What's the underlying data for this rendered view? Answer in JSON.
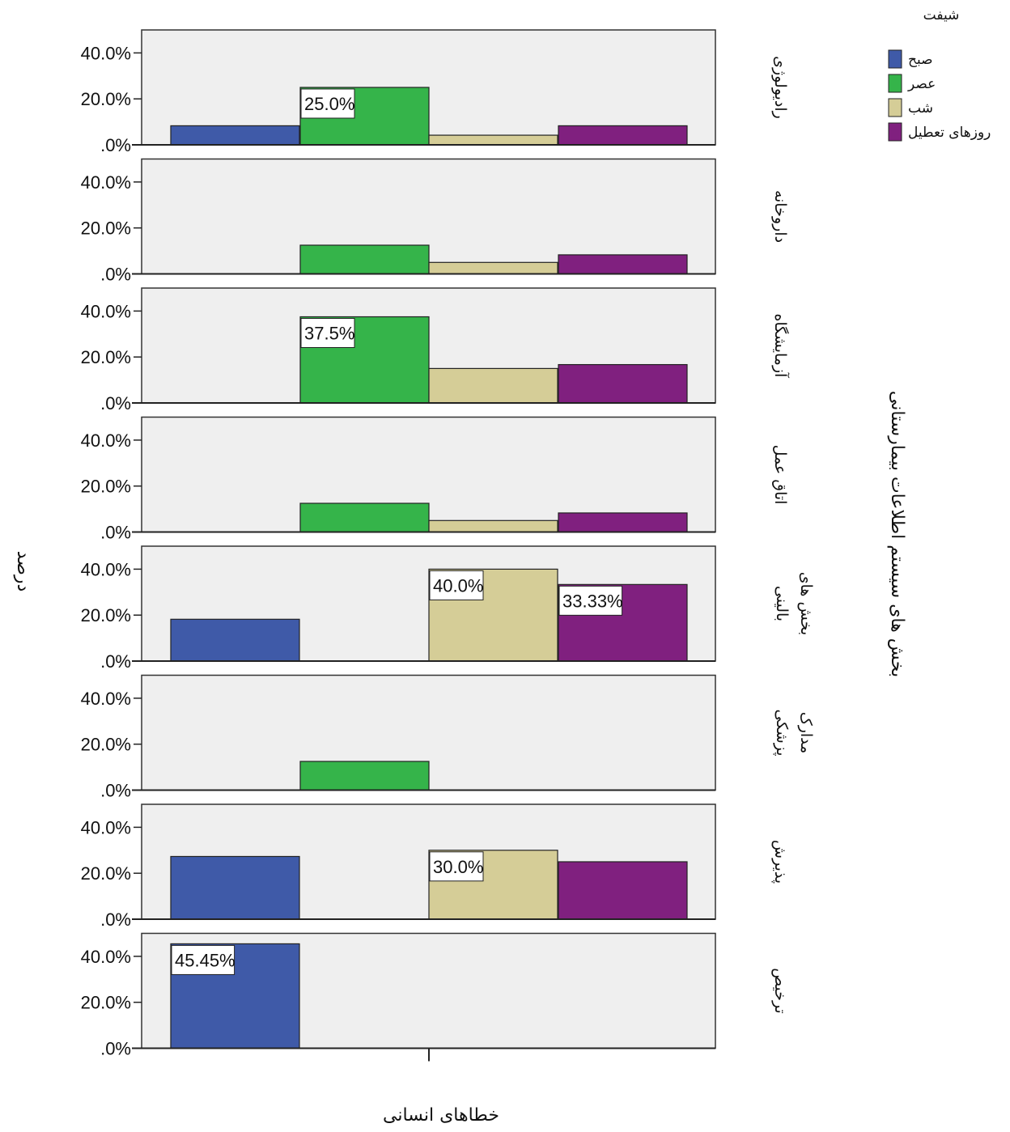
{
  "chart_data": {
    "type": "bar",
    "xlabel": "خطاهای انسانی",
    "ylabel": "درصد",
    "row_axis_title": "بخش های سیستم اطلاعات بیمارستانی",
    "ylim": [
      0,
      50
    ],
    "yticks": [
      0,
      20,
      40
    ],
    "ytick_labels": [
      ".0%",
      "20.0%",
      "40.0%"
    ],
    "legend": {
      "title": "شیفت",
      "position": "top-right",
      "entries": [
        "صبح",
        "عصر",
        "شب",
        "روزهای تعطیل"
      ]
    },
    "series": [
      {
        "name": "صبح",
        "color": "#3f5aa8"
      },
      {
        "name": "عصر",
        "color": "#35b44a"
      },
      {
        "name": "شب",
        "color": "#d5cd97"
      },
      {
        "name": "روزهای تعطیل",
        "color": "#80207f"
      }
    ],
    "panels": [
      {
        "label": [
          "رادیولوژی"
        ],
        "values": [
          8.3,
          25.0,
          4.2,
          8.3
        ],
        "data_labels": [
          null,
          "25.0%",
          null,
          null
        ]
      },
      {
        "label": [
          "داروخانه"
        ],
        "values": [
          0,
          12.5,
          5.0,
          8.3
        ],
        "data_labels": [
          null,
          null,
          null,
          null
        ]
      },
      {
        "label": [
          "آزمایشگاه"
        ],
        "values": [
          0,
          37.5,
          15.0,
          16.7
        ],
        "data_labels": [
          null,
          "37.5%",
          null,
          null
        ]
      },
      {
        "label": [
          "اتاق عمل"
        ],
        "values": [
          0,
          12.5,
          5.0,
          8.3
        ],
        "data_labels": [
          null,
          null,
          null,
          null
        ]
      },
      {
        "label": [
          "بخش های",
          "بالینی"
        ],
        "values": [
          18.2,
          0,
          40.0,
          33.33
        ],
        "data_labels": [
          null,
          null,
          "40.0%",
          "33.33%"
        ]
      },
      {
        "label": [
          "مدارک",
          "پزشکی"
        ],
        "values": [
          0,
          12.5,
          0,
          0
        ],
        "data_labels": [
          null,
          null,
          null,
          null
        ]
      },
      {
        "label": [
          "پذیرش"
        ],
        "values": [
          27.3,
          0,
          30.0,
          25.0
        ],
        "data_labels": [
          null,
          null,
          "30.0%",
          null
        ]
      },
      {
        "label": [
          "ترخیص"
        ],
        "values": [
          45.45,
          0,
          0,
          0
        ],
        "data_labels": [
          "45.45%",
          null,
          null,
          null
        ]
      }
    ],
    "grid": false,
    "panel_background": "#efefef"
  }
}
